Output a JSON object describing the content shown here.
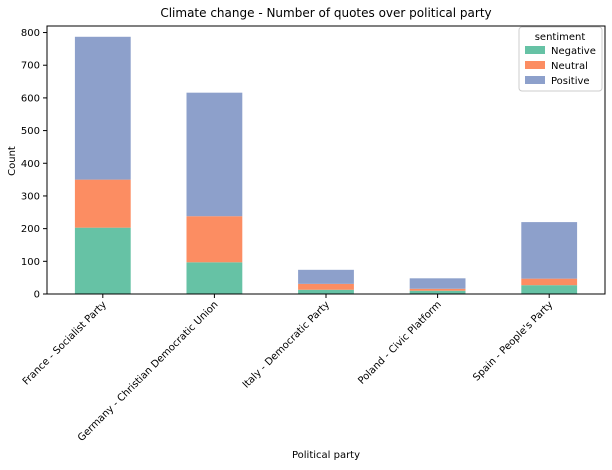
{
  "chart_data": {
    "type": "bar",
    "stacked": true,
    "title": "Climate change - Number of quotes over political party",
    "xlabel": "Political party",
    "ylabel": "Count",
    "ylim": [
      0,
      820
    ],
    "yticks": [
      0,
      100,
      200,
      300,
      400,
      500,
      600,
      700,
      800
    ],
    "categories": [
      "France - Socialist Party",
      "Germany - Christian Democratic Union",
      "Italy - Democratic Party",
      "Poland - Civic Platform",
      "Spain - People's Party"
    ],
    "series": [
      {
        "name": "Negative",
        "color": "#66c2a5",
        "values": [
          203,
          97,
          13,
          10,
          27
        ]
      },
      {
        "name": "Neutral",
        "color": "#fc8d62",
        "values": [
          147,
          141,
          18,
          6,
          20
        ]
      },
      {
        "name": "Positive",
        "color": "#8da0cb",
        "values": [
          437,
          378,
          43,
          32,
          173
        ]
      }
    ],
    "legend": {
      "title": "sentiment",
      "placement": "top-right"
    },
    "grid": false
  }
}
